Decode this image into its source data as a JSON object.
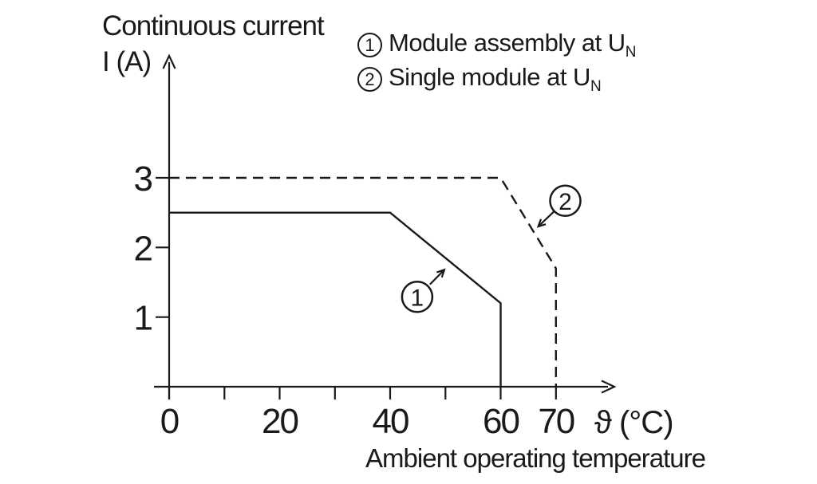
{
  "colors": {
    "ink": "#1a1a1a",
    "background": "#ffffff"
  },
  "legend": {
    "items": [
      {
        "marker": "1",
        "text": "Module assembly at U",
        "subscript": "N"
      },
      {
        "marker": "2",
        "text": "Single module at U",
        "subscript": "N"
      }
    ]
  },
  "chart_data": {
    "type": "line",
    "title": "",
    "ylabel_lines": [
      "Continuous current",
      "I (A)"
    ],
    "xlabel_unit": "ϑ (°C)",
    "xlabel_caption": "Ambient operating temperature",
    "xlim": [
      0,
      80
    ],
    "ylim": [
      0,
      4.5
    ],
    "grid": false,
    "legend_position": "top-right",
    "x_axis": {
      "ticks": [
        0,
        10,
        20,
        30,
        40,
        50,
        60,
        70
      ],
      "labeled_ticks": [
        {
          "value": 0,
          "label": "0"
        },
        {
          "value": 20,
          "label": "20"
        },
        {
          "value": 40,
          "label": "40"
        },
        {
          "value": 60,
          "label": "60"
        },
        {
          "value": 70,
          "label": "70"
        }
      ]
    },
    "y_axis": {
      "labeled_ticks": [
        {
          "value": 1,
          "label": "1"
        },
        {
          "value": 2,
          "label": "2"
        },
        {
          "value": 3,
          "label": "3"
        }
      ]
    },
    "series": [
      {
        "id": "1",
        "name": "Module assembly at UN",
        "line_style": "solid",
        "points": [
          [
            0,
            2.5
          ],
          [
            40,
            2.5
          ],
          [
            60,
            1.2
          ],
          [
            60,
            0
          ]
        ]
      },
      {
        "id": "2",
        "name": "Single module at UN",
        "line_style": "dashed",
        "points": [
          [
            0,
            3
          ],
          [
            60,
            3
          ],
          [
            70,
            1.7
          ],
          [
            70,
            0
          ]
        ]
      }
    ],
    "annotations": [
      {
        "label": "1",
        "circle_at": [
          44.9,
          1.29
        ],
        "arrow_from": [
          47.2,
          1.47
        ],
        "arrow_to": [
          49.8,
          1.68
        ]
      },
      {
        "label": "2",
        "circle_at": [
          71.7,
          2.67
        ],
        "arrow_from": [
          69.7,
          2.52
        ],
        "arrow_to": [
          66.8,
          2.3
        ]
      }
    ]
  }
}
